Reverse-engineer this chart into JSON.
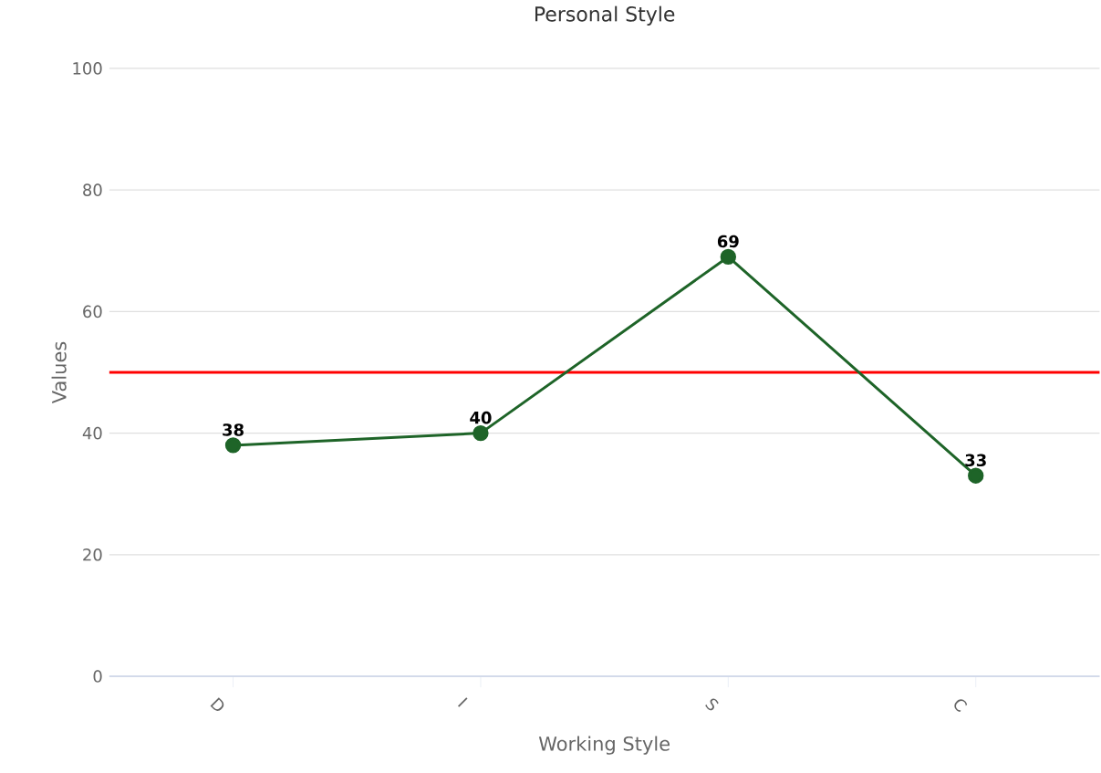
{
  "chart_data": {
    "type": "line",
    "title": "Personal Style",
    "xlabel": "Working Style",
    "ylabel": "Values",
    "categories": [
      "D",
      "I",
      "S",
      "C"
    ],
    "series": [
      {
        "color": "#1e6428",
        "values": [
          38,
          40,
          69,
          33
        ]
      }
    ],
    "ylim": [
      0,
      100
    ],
    "yticks": [
      0,
      20,
      40,
      60,
      80,
      100
    ],
    "grid": "y",
    "marker": "circle",
    "line_style": "solid",
    "data_labels": true,
    "ref_lines": [
      {
        "axis": "y",
        "value": 50,
        "color": "#ff0000"
      }
    ]
  }
}
